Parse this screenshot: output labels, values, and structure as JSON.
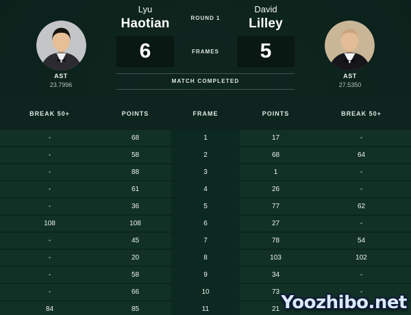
{
  "header": {
    "round_label": "ROUND 1",
    "frames_label": "FRAMES",
    "status": "MATCH COMPLETED"
  },
  "players": {
    "left": {
      "first_name": "Lyu",
      "last_name": "Haotian",
      "frames_won": "6",
      "ast_label": "AST",
      "ast_value": "23.7996"
    },
    "right": {
      "first_name": "David",
      "last_name": "Lilley",
      "frames_won": "5",
      "ast_label": "AST",
      "ast_value": "27.5350"
    }
  },
  "table": {
    "columns": [
      "BREAK 50+",
      "POINTS",
      "FRAME",
      "POINTS",
      "BREAK 50+"
    ],
    "rows": [
      [
        "-",
        "68",
        "1",
        "17",
        "-"
      ],
      [
        "-",
        "58",
        "2",
        "68",
        "64"
      ],
      [
        "-",
        "88",
        "3",
        "1",
        "-"
      ],
      [
        "-",
        "61",
        "4",
        "26",
        "-"
      ],
      [
        "-",
        "36",
        "5",
        "77",
        "62"
      ],
      [
        "108",
        "108",
        "6",
        "27",
        "-"
      ],
      [
        "-",
        "45",
        "7",
        "78",
        "54"
      ],
      [
        "-",
        "20",
        "8",
        "103",
        "102"
      ],
      [
        "-",
        "58",
        "9",
        "34",
        "-"
      ],
      [
        "-",
        "66",
        "10",
        "73",
        "-"
      ],
      [
        "84",
        "85",
        "11",
        "21",
        "-"
      ]
    ]
  },
  "watermark": {
    "text": "Yoozhibo.net"
  },
  "colors": {
    "background": "#0b201a",
    "table_background": "#0d251e",
    "row_background": "#113127",
    "frame_cell_background": "#0c2921",
    "score_box_background": "#0a1813",
    "separator_line": "#41564d",
    "text": "#ffffff",
    "muted_text": "#b9c6c0"
  }
}
